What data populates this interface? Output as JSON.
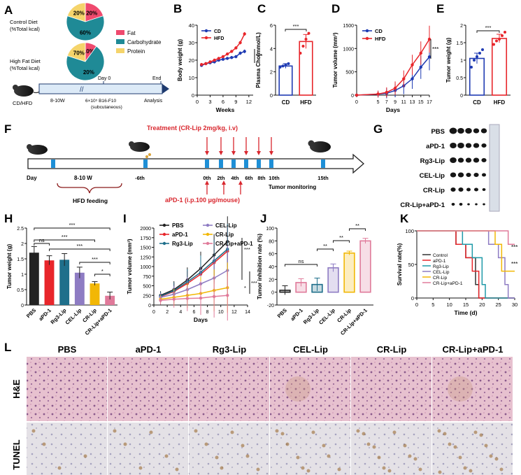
{
  "panel_letters": [
    "A",
    "B",
    "C",
    "D",
    "E",
    "F",
    "G",
    "H",
    "I",
    "J",
    "K",
    "L"
  ],
  "colors": {
    "cd": "#1f3bb3",
    "hfd": "#e8262b",
    "fat": "#ef4a6e",
    "carb": "#1f8a96",
    "protein": "#f5d46b",
    "arrow_red": "#d9272e",
    "timeline_fill": "#dceaf7"
  },
  "panel_a": {
    "control_label": [
      "Control Diet",
      "(%Total kcal)"
    ],
    "hfd_label": [
      "High Fat Diet",
      "(%Total kcal)"
    ],
    "legend": [
      "Fat",
      "Carbohydrate",
      "Protein"
    ],
    "control_slices": [
      {
        "name": "Fat",
        "value": 20
      },
      {
        "name": "Carbohydrate",
        "value": 60
      },
      {
        "name": "Protein",
        "value": 20
      }
    ],
    "control_texts": [
      "20%",
      "60%",
      "20%"
    ],
    "hfd_slices": [
      {
        "name": "Fat",
        "value": 10
      },
      {
        "name": "Carbohydrate",
        "value": 70
      },
      {
        "name": "Protein",
        "value": 20
      }
    ],
    "hfd_texts": [
      "10%",
      "20%",
      "70%"
    ],
    "timeline": {
      "mouse_label": "CD/HFD",
      "age": "8-10W",
      "day0": "Day 0",
      "inoculation": [
        "6×10⁵ B16-F10",
        "(subcutaneous)"
      ],
      "end": "End",
      "end_sub": "Analysis"
    }
  },
  "chart_data": [
    {
      "panel": "B",
      "type": "line",
      "xlabel": "Weeks",
      "ylabel": "Body weight (g)",
      "ylim": [
        0,
        40
      ],
      "yticks": [
        0,
        10,
        20,
        30,
        40
      ],
      "xticks": [
        0,
        3,
        6,
        9,
        12
      ],
      "xlim": [
        0,
        13
      ],
      "series": [
        {
          "name": "CD",
          "x": [
            1,
            2,
            3,
            4,
            5,
            6,
            7,
            8,
            9,
            10,
            11
          ],
          "values": [
            17,
            18,
            18.5,
            19,
            20,
            20.5,
            21,
            21.5,
            22,
            24,
            25
          ]
        },
        {
          "name": "HFD",
          "x": [
            1,
            2,
            3,
            4,
            5,
            6,
            7,
            8,
            9,
            10,
            11
          ],
          "values": [
            17.5,
            18,
            19,
            20,
            21,
            22,
            23.5,
            25,
            27,
            30,
            35
          ]
        }
      ],
      "significance": "***"
    },
    {
      "panel": "C",
      "type": "bar",
      "categories": [
        "CD",
        "HFD"
      ],
      "values": [
        2.5,
        4.6
      ],
      "errors": [
        0.2,
        0.6
      ],
      "ylabel": "Plasma Cho(mmol/L)",
      "ylim": [
        0,
        6
      ],
      "yticks": [
        0,
        2,
        4,
        6
      ],
      "significance": "***",
      "points": [
        [
          2.4,
          2.5,
          2.6,
          2.7
        ],
        [
          3.6,
          4.2,
          4.8,
          5.3
        ]
      ]
    },
    {
      "panel": "D",
      "type": "line",
      "xlabel": "Days",
      "ylabel": "Tumor volume (mm³)",
      "ylim": [
        0,
        1500
      ],
      "yticks": [
        0,
        500,
        1000,
        1500
      ],
      "xticks": [
        0,
        5,
        7,
        9,
        11,
        13,
        15,
        17
      ],
      "series": [
        {
          "name": "CD",
          "x": [
            0,
            5,
            7,
            9,
            11,
            13,
            15,
            17
          ],
          "values": [
            0,
            20,
            40,
            100,
            200,
            350,
            600,
            820
          ]
        },
        {
          "name": "HFD",
          "x": [
            0,
            5,
            7,
            9,
            11,
            13,
            15,
            17
          ],
          "values": [
            0,
            25,
            60,
            150,
            350,
            650,
            900,
            1200
          ]
        }
      ],
      "significance": "***"
    },
    {
      "panel": "E",
      "type": "bar",
      "categories": [
        "CD",
        "HFD"
      ],
      "values": [
        1.05,
        1.62
      ],
      "errors": [
        0.15,
        0.12
      ],
      "ylabel": "Tumor weight (g)",
      "ylim": [
        0,
        2
      ],
      "yticks": [
        0,
        0.5,
        1,
        1.5,
        2
      ],
      "significance": "***",
      "points": [
        [
          0.8,
          1.0,
          1.1,
          1.2,
          1.3
        ],
        [
          1.45,
          1.55,
          1.6,
          1.7,
          1.8
        ]
      ]
    },
    {
      "panel": "H",
      "type": "bar",
      "categories": [
        "PBS",
        "aPD-1",
        "Rg3-Lip",
        "CEL-Lip",
        "CR-Lip",
        "CR-Lip+aPD-1"
      ],
      "values": [
        1.7,
        1.45,
        1.47,
        1.05,
        0.7,
        0.3
      ],
      "errors": [
        0.2,
        0.15,
        0.2,
        0.18,
        0.06,
        0.12
      ],
      "ylabel": "Tumor weight (g)",
      "ylim": [
        0,
        2.5
      ],
      "yticks": [
        0,
        0.5,
        1,
        1.5,
        2,
        2.5
      ],
      "significance": [
        [
          "PBS",
          "CR-Lip+aPD-1",
          "***"
        ],
        [
          "PBS",
          "CR-Lip",
          "***"
        ],
        [
          "PBS",
          "aPD-1",
          "ns"
        ],
        [
          "aPD-1",
          "CR-Lip+aPD-1",
          "***"
        ],
        [
          "CEL-Lip",
          "CR-Lip+aPD-1",
          "***"
        ],
        [
          "CR-Lip",
          "CR-Lip+aPD-1",
          "*"
        ]
      ]
    },
    {
      "panel": "I",
      "type": "line",
      "xlabel": "Days",
      "ylabel": "Tumor volume (mm³)",
      "ylim": [
        0,
        2000
      ],
      "yticks": [
        0,
        250,
        500,
        750,
        1000,
        1250,
        1500,
        1750,
        2000
      ],
      "xticks": [
        0,
        2,
        4,
        6,
        8,
        10,
        12,
        14
      ],
      "series": [
        {
          "name": "PBS",
          "x": [
            1,
            3,
            5,
            7,
            9,
            11
          ],
          "values": [
            250,
            400,
            650,
            950,
            1300,
            1650
          ]
        },
        {
          "name": "aPD-1",
          "x": [
            1,
            3,
            5,
            7,
            9,
            11
          ],
          "values": [
            220,
            350,
            560,
            800,
            1100,
            1400
          ]
        },
        {
          "name": "Rg3-Lip",
          "x": [
            1,
            3,
            5,
            7,
            9,
            11
          ],
          "values": [
            230,
            370,
            600,
            850,
            1150,
            1450
          ]
        },
        {
          "name": "CEL-Lip",
          "x": [
            1,
            3,
            5,
            7,
            9,
            11
          ],
          "values": [
            200,
            280,
            400,
            550,
            700,
            900
          ]
        },
        {
          "name": "CR-Lip",
          "x": [
            1,
            3,
            5,
            7,
            9,
            11
          ],
          "values": [
            150,
            200,
            250,
            300,
            380,
            450
          ]
        },
        {
          "name": "CR-Lip+aPD-1",
          "x": [
            1,
            3,
            5,
            7,
            9,
            11
          ],
          "values": [
            120,
            150,
            170,
            180,
            220,
            250
          ]
        }
      ],
      "significance": [
        "***",
        "***",
        "*"
      ]
    },
    {
      "panel": "J",
      "type": "bar",
      "categories": [
        "PBS",
        "aPD-1",
        "Rg3-Lip",
        "CEL-Lip",
        "CR-Lip",
        "CR-Lip+aPD-1"
      ],
      "values": [
        3,
        15,
        12,
        38,
        61,
        80
      ],
      "errors": [
        7,
        6,
        10,
        6,
        3,
        4
      ],
      "ylabel": "Tumor inhibition rate (%)",
      "ylim": [
        -20,
        100
      ],
      "yticks": [
        -20,
        0,
        20,
        40,
        60,
        80,
        100
      ],
      "significance": [
        [
          "PBS",
          "Rg3-Lip",
          "ns"
        ],
        [
          "Rg3-Lip",
          "CEL-Lip",
          "**"
        ],
        [
          "CEL-Lip",
          "CR-Lip",
          "**"
        ],
        [
          "CR-Lip",
          "CR-Lip+aPD-1",
          "**"
        ]
      ]
    },
    {
      "panel": "K",
      "type": "line",
      "xlabel": "Time (d)",
      "ylabel": "Survival rate(%)",
      "ylim": [
        0,
        100
      ],
      "yticks": [
        0,
        50,
        100
      ],
      "xticks": [
        0,
        5,
        10,
        15,
        20,
        25,
        30
      ],
      "series": [
        {
          "name": "Control",
          "x": [
            0,
            9,
            12,
            15,
            18,
            19
          ],
          "values": [
            100,
            100,
            80,
            60,
            20,
            0
          ]
        },
        {
          "name": "aPD-1",
          "x": [
            0,
            10,
            12,
            15,
            17,
            19
          ],
          "values": [
            100,
            100,
            80,
            60,
            40,
            0
          ]
        },
        {
          "name": "Rg3-Lip",
          "x": [
            0,
            12,
            14,
            17,
            20,
            21
          ],
          "values": [
            100,
            100,
            80,
            60,
            20,
            0
          ]
        },
        {
          "name": "CEL-Lip",
          "x": [
            0,
            19,
            22,
            25,
            27,
            28
          ],
          "values": [
            100,
            100,
            80,
            60,
            20,
            0
          ]
        },
        {
          "name": "CR-Lip",
          "x": [
            0,
            21,
            24,
            26,
            29
          ],
          "values": [
            100,
            100,
            80,
            40,
            40
          ]
        },
        {
          "name": "CR-Lip+aPD-1",
          "x": [
            0,
            25,
            28,
            30
          ],
          "values": [
            100,
            100,
            80,
            80
          ]
        }
      ],
      "significance": [
        "***",
        "***"
      ]
    }
  ],
  "panel_f": {
    "treatment_title": "Treatment (CR-Lip 2mg/kg, i.v)",
    "apd1_title": "aPD-1 (i.p.100 μg/mouse)",
    "day": "Day",
    "feeding_span": "8-10 W",
    "feeding_label": "HFD feeding",
    "day_labels": [
      "-6th",
      "0th",
      "2th",
      "4th",
      "6th",
      "8th",
      "10th",
      "15th"
    ],
    "monitoring": "Tumor monitoring"
  },
  "panel_g": {
    "rows": [
      "PBS",
      "aPD-1",
      "Rg3-Lip",
      "CEL-Lip",
      "CR-Lip",
      "CR-Lip+aPD-1"
    ]
  },
  "panel_l": {
    "columns": [
      "PBS",
      "aPD-1",
      "Rg3-Lip",
      "CEL-Lip",
      "CR-Lip",
      "CR-Lip+aPD-1"
    ],
    "rows": [
      "H&E",
      "TUNEL"
    ]
  }
}
